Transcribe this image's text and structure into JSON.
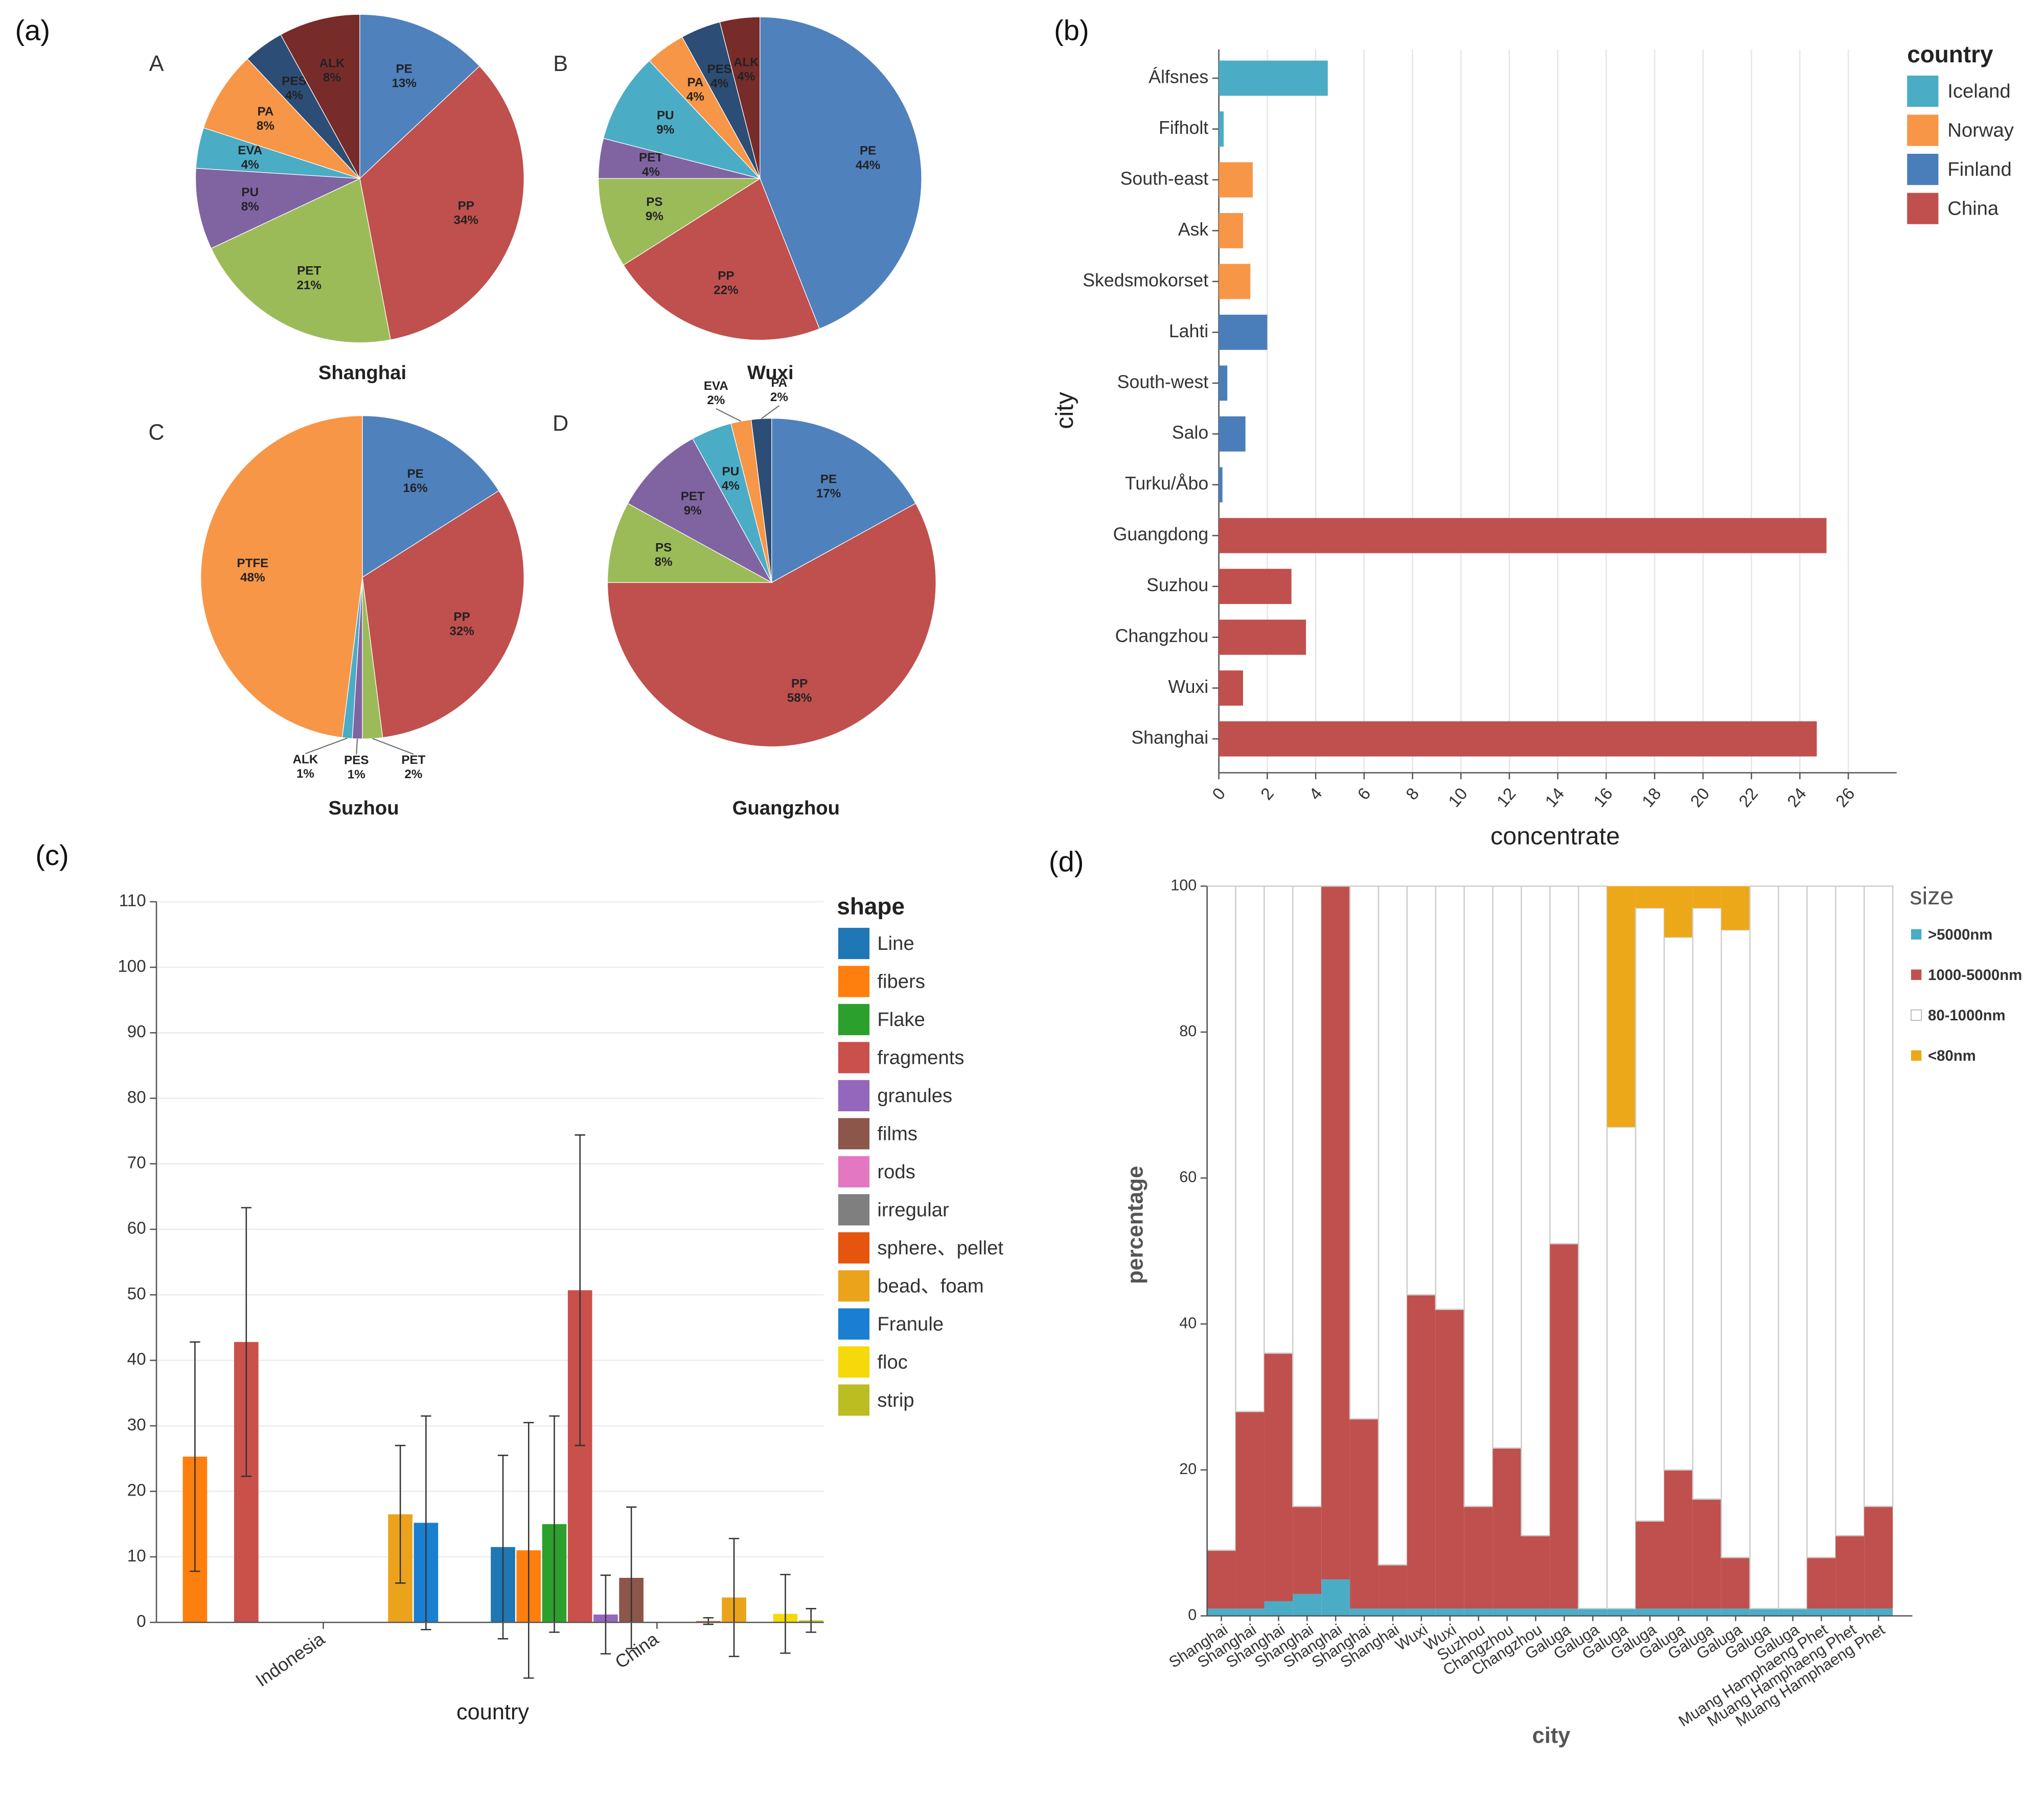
{
  "chart_data": [
    {
      "type": "pie",
      "panel": "(a)",
      "label": "A",
      "title": "Shanghai",
      "categories": [
        "PE",
        "PP",
        "PET",
        "PU",
        "EVA",
        "PA",
        "PES",
        "ALK"
      ],
      "values": [
        13,
        34,
        21,
        8,
        4,
        8,
        4,
        8
      ],
      "value_labels": [
        "13%",
        "34%",
        "21%",
        "8%",
        "4%",
        "8%",
        "4%",
        "8%"
      ],
      "colors": [
        "#4f81bd",
        "#c0504d",
        "#9bbb59",
        "#8064a2",
        "#4bacc6",
        "#f79646",
        "#2c4d75",
        "#772c2a"
      ]
    },
    {
      "type": "pie",
      "label": "B",
      "title": "Wuxi",
      "categories": [
        "PE",
        "PP",
        "PS",
        "PET",
        "PU",
        "PA",
        "PES",
        "ALK"
      ],
      "values": [
        44,
        22,
        9,
        4,
        9,
        4,
        4,
        4
      ],
      "value_labels": [
        "44%",
        "22%",
        "9%",
        "4%",
        "9%",
        "4%",
        "4%",
        "4%"
      ],
      "colors": [
        "#4f81bd",
        "#c0504d",
        "#9bbb59",
        "#8064a2",
        "#4bacc6",
        "#f79646",
        "#2c4d75",
        "#772c2a"
      ]
    },
    {
      "type": "pie",
      "label": "C",
      "title": "Suzhou",
      "categories": [
        "PE",
        "PP",
        "PET",
        "PES",
        "ALK",
        "PTFE"
      ],
      "values": [
        16,
        32,
        2,
        1,
        1,
        48
      ],
      "value_labels": [
        "16%",
        "32%",
        "2%",
        "1%",
        "1%",
        "48%"
      ],
      "colors": [
        "#4f81bd",
        "#c0504d",
        "#9bbb59",
        "#8064a2",
        "#4bacc6",
        "#f79646"
      ]
    },
    {
      "type": "pie",
      "label": "D",
      "title": "Guangzhou",
      "categories": [
        "PE",
        "PP",
        "PS",
        "PET",
        "PU",
        "EVA",
        "PA"
      ],
      "values": [
        17,
        58,
        8,
        9,
        4,
        2,
        2
      ],
      "value_labels": [
        "17%",
        "58%",
        "8%",
        "9%",
        "4%",
        "2%",
        "2%"
      ],
      "colors": [
        "#4f81bd",
        "#c0504d",
        "#9bbb59",
        "#8064a2",
        "#4bacc6",
        "#f79646",
        "#2c4d75"
      ]
    },
    {
      "type": "hbar",
      "panel": "(b)",
      "x_label": "concentrate",
      "y_label": "city",
      "legend_title": "country",
      "categories": [
        "Álfsnes",
        "Fifholt",
        "South-east",
        "Ask",
        "Skedsmokorset",
        "Lahti",
        "South-west",
        "Salo",
        "Turku/Åbo",
        "Guangdong",
        "Suzhou",
        "Changzhou",
        "Wuxi",
        "Shanghai"
      ],
      "series": [
        {
          "name": "Iceland",
          "color": "#4bacc6",
          "values": [
            4.5,
            0.2,
            null,
            null,
            null,
            null,
            null,
            null,
            null,
            null,
            null,
            null,
            null,
            null
          ]
        },
        {
          "name": "Norway",
          "color": "#f79646",
          "values": [
            null,
            null,
            1.4,
            1.0,
            1.3,
            null,
            null,
            null,
            null,
            null,
            null,
            null,
            null,
            null
          ]
        },
        {
          "name": "Finland",
          "color": "#4a7ebb",
          "values": [
            null,
            null,
            null,
            null,
            null,
            2.0,
            0.35,
            1.1,
            0.15,
            null,
            null,
            null,
            null,
            null
          ]
        },
        {
          "name": "China",
          "color": "#c0504d",
          "values": [
            null,
            null,
            null,
            null,
            null,
            null,
            null,
            null,
            null,
            25.1,
            3.0,
            3.6,
            1.0,
            24.7
          ]
        }
      ],
      "xlim": [
        0,
        28
      ],
      "xticks": [
        0,
        2,
        4,
        6,
        8,
        10,
        12,
        14,
        16,
        18,
        20,
        22,
        24,
        26
      ],
      "grid": true
    },
    {
      "type": "bar",
      "panel": "(c)",
      "x_label": "country",
      "legend_title": "shape",
      "categories": [
        "Indonesia",
        "China"
      ],
      "series": [
        {
          "name": "Line",
          "color": "#1f77b4",
          "values": [
            0,
            11.5
          ],
          "errors": [
            null,
            14
          ]
        },
        {
          "name": "fibers",
          "color": "#ff7f0e",
          "values": [
            25.3,
            11
          ],
          "errors": [
            17.5,
            19.5
          ]
        },
        {
          "name": "Flake",
          "color": "#2ca02c",
          "values": [
            0,
            15
          ],
          "errors": [
            null,
            16.5
          ]
        },
        {
          "name": "fragments",
          "color": "#c9504b",
          "values": [
            42.8,
            50.7
          ],
          "errors": [
            20.5,
            23.7
          ]
        },
        {
          "name": "granules",
          "color": "#9467bd",
          "values": [
            0,
            1.2
          ],
          "errors": [
            null,
            6
          ]
        },
        {
          "name": "films",
          "color": "#8c564b",
          "values": [
            0,
            6.8
          ],
          "errors": [
            null,
            10.8
          ]
        },
        {
          "name": "rods",
          "color": "#e377c2",
          "values": [
            0,
            0
          ],
          "errors": [
            null,
            null
          ]
        },
        {
          "name": "irregular",
          "color": "#7f7f7f",
          "values": [
            0,
            0
          ],
          "errors": [
            null,
            null
          ]
        },
        {
          "name": "sphere、pellet",
          "color": "#e6550d",
          "values": [
            0,
            0.2
          ],
          "errors": [
            null,
            0.5
          ]
        },
        {
          "name": "bead、foam",
          "color": "#eba31c",
          "values": [
            16.5,
            3.8
          ],
          "errors": [
            10.5,
            9
          ]
        },
        {
          "name": "Franule",
          "color": "#1a7fd0",
          "values": [
            15.2,
            0
          ],
          "errors": [
            16.3,
            null
          ]
        },
        {
          "name": "floc",
          "color": "#f5d90a",
          "values": [
            0,
            1.3
          ],
          "errors": [
            null,
            6
          ]
        },
        {
          "name": "strip",
          "color": "#bcbd22",
          "values": [
            0,
            0.3
          ],
          "errors": [
            null,
            1.8
          ]
        }
      ],
      "ylim": [
        0,
        110
      ],
      "yticks": [
        0,
        10,
        20,
        30,
        40,
        50,
        60,
        70,
        80,
        90,
        100,
        110
      ],
      "grid": true
    },
    {
      "type": "stacked_bar",
      "panel": "(d)",
      "x_label": "city",
      "y_label": "percentage",
      "legend_title": "size",
      "categories": [
        "Shanghai",
        "Shanghai",
        "Shanghai",
        "Shanghai",
        "Shanghai",
        "Shanghai",
        "Shanghai",
        "Wuxi",
        "Wuxi",
        "Suzhou",
        "Changzhou",
        "Changzhou",
        "Galuga",
        "Galuga",
        "Galuga",
        "Galuga",
        "Galuga",
        "Galuga",
        "Galuga",
        "Galuga",
        "Galuga",
        "Muang Hamphaeng Phet",
        "Muang Hamphaeng Phet",
        "Muang Hamphaeng Phet"
      ],
      "series": [
        {
          "name": ">5000nm",
          "color": "#4bacc6",
          "values": [
            1,
            1,
            2,
            3,
            5,
            1,
            1,
            1,
            1,
            1,
            1,
            1,
            1,
            1,
            1,
            1,
            1,
            1,
            1,
            1,
            1,
            1,
            1,
            1
          ]
        },
        {
          "name": "1000-5000nm",
          "color": "#c0504d",
          "values": [
            8,
            27,
            34,
            12,
            95,
            26,
            6,
            43,
            41,
            14,
            22,
            10,
            50,
            0,
            0,
            12,
            19,
            15,
            7,
            0,
            0,
            7,
            10,
            14
          ]
        },
        {
          "name": "80-1000nm",
          "color": "#ffffff",
          "values": [
            91,
            72,
            64,
            85,
            0,
            73,
            93,
            56,
            58,
            85,
            77,
            89,
            49,
            99,
            66,
            84,
            73,
            81,
            86,
            99,
            99,
            92,
            89,
            85
          ]
        },
        {
          "name": "<80nm",
          "color": "#eda81a",
          "values": [
            0,
            0,
            0,
            0,
            0,
            0,
            0,
            0,
            0,
            0,
            0,
            0,
            0,
            0,
            33,
            3,
            7,
            3,
            6,
            0,
            0,
            0,
            0,
            0
          ]
        }
      ],
      "ylim": [
        0,
        100
      ],
      "yticks": [
        0,
        20,
        40,
        60,
        80,
        100
      ],
      "grid": true
    }
  ]
}
